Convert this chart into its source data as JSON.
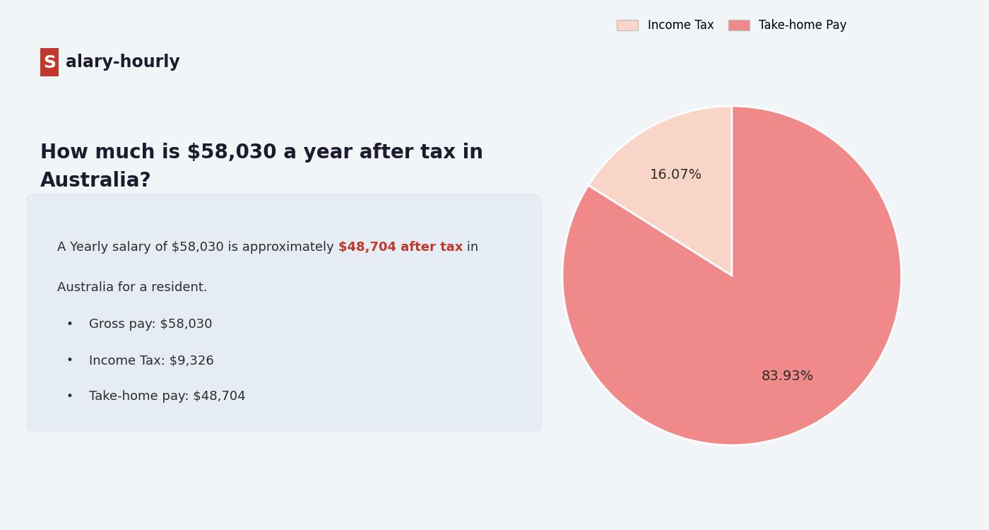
{
  "background_color": "#f2f5f8",
  "logo_s_bg": "#c0392b",
  "logo_s_text": "S",
  "logo_rest": "alary-hourly",
  "heading_line1": "How much is $58,030 a year after tax in",
  "heading_line2": "Australia?",
  "heading_color": "#1c1c2e",
  "box_bg": "#e6ecf3",
  "summary_normal1": "A Yearly salary of $58,030 is approximately ",
  "summary_highlight": "$48,704 after tax",
  "summary_normal2": " in",
  "summary_line2": "Australia for a resident.",
  "highlight_color": "#c0392b",
  "bullet_items": [
    "Gross pay: $58,030",
    "Income Tax: $9,326",
    "Take-home pay: $48,704"
  ],
  "bullet_color": "#2c2c2c",
  "text_color": "#2c2c2c",
  "pie_values": [
    16.07,
    83.93
  ],
  "pie_labels": [
    "Income Tax",
    "Take-home Pay"
  ],
  "pie_colors": [
    "#f9d5c8",
    "#f08a8a"
  ],
  "pie_text_color": "#2c2c2c"
}
